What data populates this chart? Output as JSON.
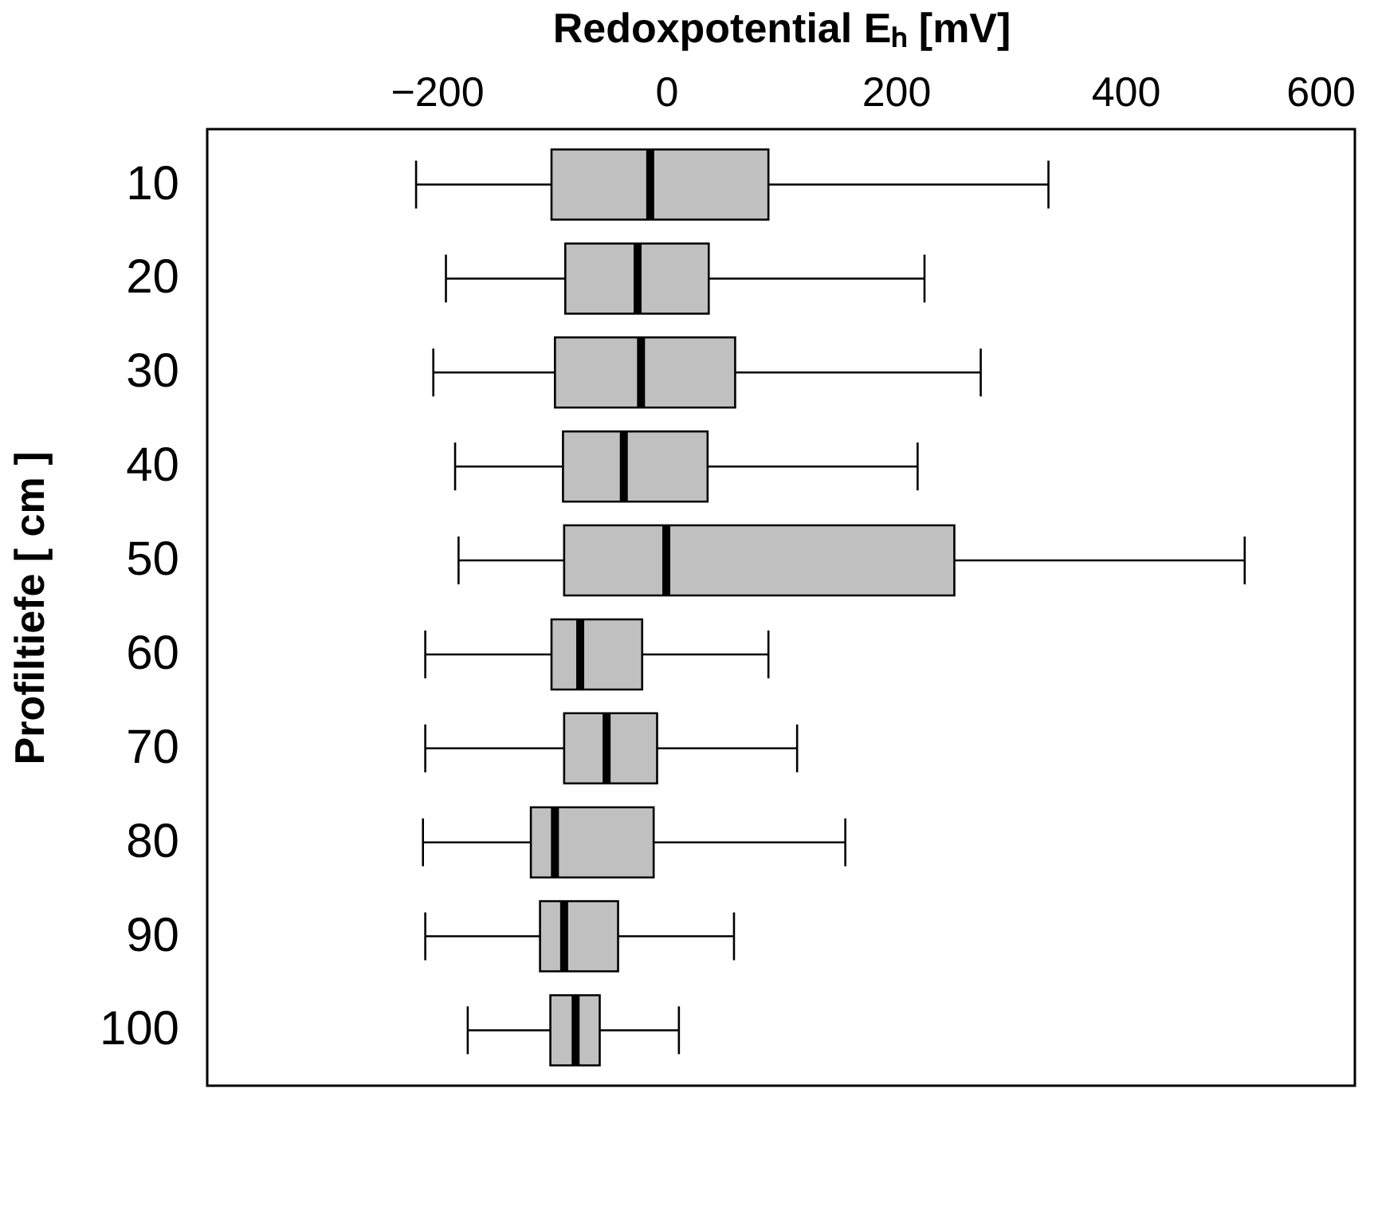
{
  "chart_data": {
    "type": "box",
    "orientation": "horizontal",
    "xlabel": "Redoxpotential Eₕ [mV]",
    "ylabel": "Profiltiefe [ cm ]",
    "categories": [
      "10",
      "20",
      "30",
      "40",
      "50",
      "60",
      "70",
      "80",
      "90",
      "100"
    ],
    "xlim": [
      -400,
      600
    ],
    "xticks": [
      -200,
      0,
      200,
      400,
      600
    ],
    "grid": false,
    "series": [
      {
        "color": "#c0c0c0",
        "boxes": [
          {
            "low": -218,
            "q1": -100,
            "median": -14,
            "q3": 89,
            "high": 333
          },
          {
            "low": -192,
            "q1": -88,
            "median": -25,
            "q3": 37,
            "high": 225
          },
          {
            "low": -203,
            "q1": -97,
            "median": -22,
            "q3": 60,
            "high": 274
          },
          {
            "low": -184,
            "q1": -90,
            "median": -37,
            "q3": 36,
            "high": 219
          },
          {
            "low": -181,
            "q1": -89,
            "median": 0,
            "q3": 251,
            "high": 504
          },
          {
            "low": -210,
            "q1": -100,
            "median": -75,
            "q3": -21,
            "high": 89
          },
          {
            "low": -210,
            "q1": -89,
            "median": -52,
            "q3": -8,
            "high": 114
          },
          {
            "low": -212,
            "q1": -118,
            "median": -97,
            "q3": -11,
            "high": 156
          },
          {
            "low": -210,
            "q1": -110,
            "median": -89,
            "q3": -42,
            "high": 59
          },
          {
            "low": -173,
            "q1": -101,
            "median": -79,
            "q3": -58,
            "high": 11
          }
        ]
      }
    ]
  }
}
